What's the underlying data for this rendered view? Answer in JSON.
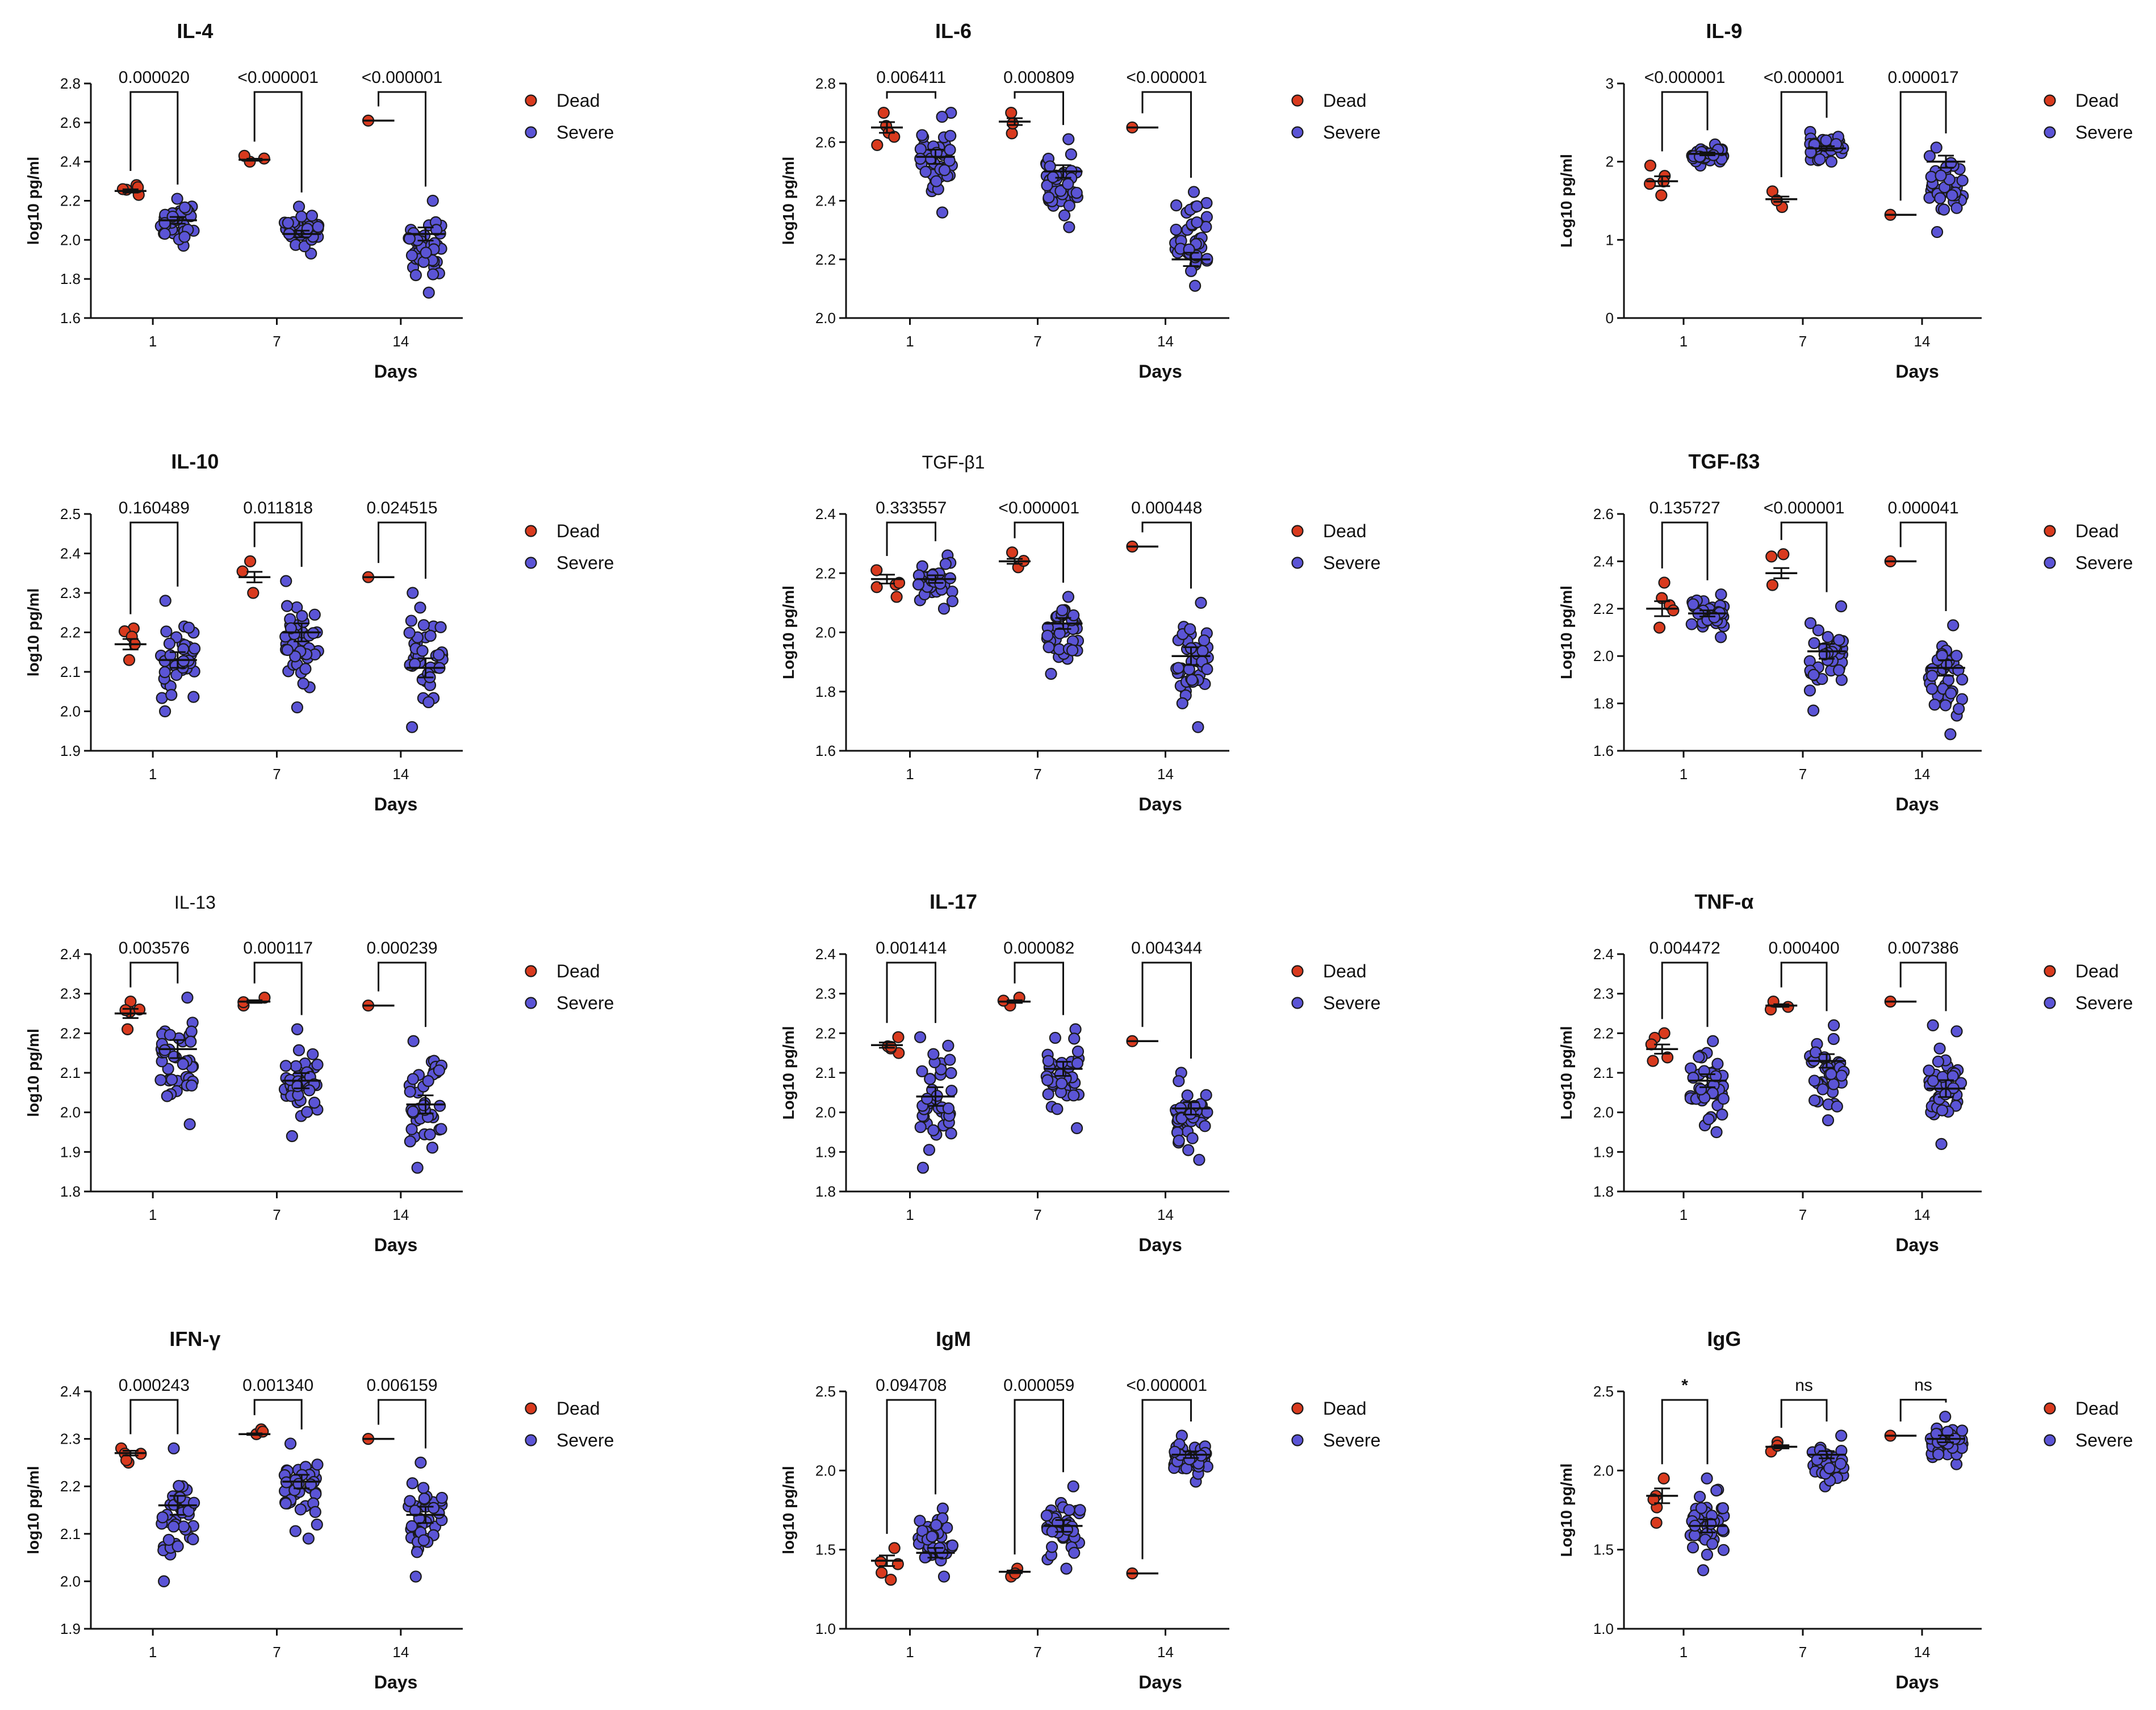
{
  "colors": {
    "dead": "#d93a1e",
    "severe": "#5b54d6",
    "outline": "#1a1a1a"
  },
  "legend": {
    "dead": "Dead",
    "severe": "Severe"
  },
  "chart_data": [
    {
      "type": "scatter",
      "title": "IL-4",
      "title_bold": true,
      "ylabel": "log10 pg/ml",
      "xlabel": "Days",
      "categories": [
        "1",
        "7",
        "14"
      ],
      "ylim": [
        1.6,
        2.8
      ],
      "yticks": [
        1.6,
        1.8,
        2.0,
        2.2,
        2.4,
        2.6,
        2.8
      ],
      "ytick_labels": [
        "1.6",
        "1.8",
        "2.0",
        "2.2",
        "2.4",
        "2.6",
        "2.8"
      ],
      "comparisons": [
        "0.000020",
        "<0.000001",
        "<0.000001"
      ],
      "series": [
        {
          "name": "Dead",
          "mean": [
            2.25,
            2.41,
            2.61
          ],
          "n": [
            5,
            3,
            1
          ],
          "range": [
            [
              2.23,
              2.28
            ],
            [
              2.4,
              2.43
            ],
            [
              2.61,
              2.61
            ]
          ]
        },
        {
          "name": "Severe",
          "mean": [
            2.1,
            2.03,
            2.03
          ],
          "n": [
            40,
            40,
            40
          ],
          "range": [
            [
              1.97,
              2.21
            ],
            [
              1.93,
              2.17
            ],
            [
              1.73,
              2.2
            ]
          ]
        }
      ]
    },
    {
      "type": "scatter",
      "title": "IL-6",
      "title_bold": true,
      "ylabel": "log10 pg/ml",
      "xlabel": "Days",
      "categories": [
        "1",
        "7",
        "14"
      ],
      "ylim": [
        2.0,
        2.8
      ],
      "yticks": [
        2.0,
        2.2,
        2.4,
        2.6,
        2.8
      ],
      "ytick_labels": [
        "2.0",
        "2.2",
        "2.4",
        "2.6",
        "2.8"
      ],
      "comparisons": [
        "0.006411",
        "0.000809",
        "<0.000001"
      ],
      "series": [
        {
          "name": "Dead",
          "mean": [
            2.65,
            2.67,
            2.65
          ],
          "n": [
            5,
            3,
            1
          ],
          "range": [
            [
              2.59,
              2.7
            ],
            [
              2.63,
              2.7
            ],
            [
              2.65,
              2.65
            ]
          ]
        },
        {
          "name": "Severe",
          "mean": [
            2.55,
            2.5,
            2.2
          ],
          "n": [
            40,
            40,
            40
          ],
          "range": [
            [
              2.36,
              2.7
            ],
            [
              2.31,
              2.61
            ],
            [
              2.11,
              2.43
            ]
          ]
        }
      ]
    },
    {
      "type": "scatter",
      "title": "IL-9",
      "title_bold": true,
      "ylabel": "Log10 pg/ml",
      "xlabel": "Days",
      "categories": [
        "1",
        "7",
        "14"
      ],
      "ylim": [
        0,
        3
      ],
      "yticks": [
        0,
        1,
        2,
        3
      ],
      "ytick_labels": [
        "0",
        "1",
        "2",
        "3"
      ],
      "comparisons": [
        "<0.000001",
        "<0.000001",
        "0.000017"
      ],
      "series": [
        {
          "name": "Dead",
          "mean": [
            1.75,
            1.52,
            1.32
          ],
          "n": [
            5,
            3,
            1
          ],
          "range": [
            [
              1.57,
              1.95
            ],
            [
              1.42,
              1.62
            ],
            [
              1.32,
              1.32
            ]
          ]
        },
        {
          "name": "Severe",
          "mean": [
            2.1,
            2.17,
            2.0
          ],
          "n": [
            40,
            40,
            40
          ],
          "range": [
            [
              1.95,
              2.22
            ],
            [
              2.0,
              2.38
            ],
            [
              1.1,
              2.18
            ]
          ]
        }
      ]
    },
    {
      "type": "scatter",
      "title": "IL-10",
      "title_bold": true,
      "ylabel": "log10 pg/ml",
      "xlabel": "Days",
      "categories": [
        "1",
        "7",
        "14"
      ],
      "ylim": [
        1.9,
        2.5
      ],
      "yticks": [
        1.9,
        2.0,
        2.1,
        2.2,
        2.3,
        2.4,
        2.5
      ],
      "ytick_labels": [
        "1.9",
        "2.0",
        "2.1",
        "2.2",
        "2.3",
        "2.4",
        "2.5"
      ],
      "comparisons": [
        "0.160489",
        "0.011818",
        "0.024515"
      ],
      "series": [
        {
          "name": "Dead",
          "mean": [
            2.17,
            2.34,
            2.34
          ],
          "n": [
            5,
            3,
            1
          ],
          "range": [
            [
              2.13,
              2.21
            ],
            [
              2.3,
              2.38
            ],
            [
              2.34,
              2.34
            ]
          ]
        },
        {
          "name": "Severe",
          "mean": [
            2.13,
            2.2,
            2.11
          ],
          "n": [
            40,
            40,
            40
          ],
          "range": [
            [
              2.0,
              2.28
            ],
            [
              2.01,
              2.33
            ],
            [
              1.96,
              2.3
            ]
          ]
        }
      ]
    },
    {
      "type": "scatter",
      "title": "TGF-β1",
      "title_bold": false,
      "ylabel": "Log10 pg/ml",
      "xlabel": "Days",
      "categories": [
        "1",
        "7",
        "14"
      ],
      "ylim": [
        1.6,
        2.4
      ],
      "yticks": [
        1.6,
        1.8,
        2.0,
        2.2,
        2.4
      ],
      "ytick_labels": [
        "1.6",
        "1.8",
        "2.0",
        "2.2",
        "2.4"
      ],
      "comparisons": [
        "0.333557",
        "<0.000001",
        "0.000448"
      ],
      "series": [
        {
          "name": "Dead",
          "mean": [
            2.18,
            2.24,
            2.29
          ],
          "n": [
            5,
            3,
            1
          ],
          "range": [
            [
              2.12,
              2.21
            ],
            [
              2.22,
              2.27
            ],
            [
              2.29,
              2.29
            ]
          ]
        },
        {
          "name": "Severe",
          "mean": [
            2.18,
            2.03,
            1.92
          ],
          "n": [
            40,
            40,
            40
          ],
          "range": [
            [
              2.08,
              2.26
            ],
            [
              1.86,
              2.12
            ],
            [
              1.68,
              2.1
            ]
          ]
        }
      ]
    },
    {
      "type": "scatter",
      "title": "TGF-ß3",
      "title_bold": true,
      "ylabel": "Log10 pg/ml",
      "xlabel": "Days",
      "categories": [
        "1",
        "7",
        "14"
      ],
      "ylim": [
        1.6,
        2.6
      ],
      "yticks": [
        1.6,
        1.8,
        2.0,
        2.2,
        2.4,
        2.6
      ],
      "ytick_labels": [
        "1.6",
        "1.8",
        "2.0",
        "2.2",
        "2.4",
        "2.6"
      ],
      "comparisons": [
        "0.135727",
        "<0.000001",
        "0.000041"
      ],
      "series": [
        {
          "name": "Dead",
          "mean": [
            2.2,
            2.35,
            2.4
          ],
          "n": [
            5,
            3,
            1
          ],
          "range": [
            [
              2.12,
              2.31
            ],
            [
              2.3,
              2.43
            ],
            [
              2.4,
              2.4
            ]
          ]
        },
        {
          "name": "Severe",
          "mean": [
            2.18,
            2.02,
            1.95
          ],
          "n": [
            40,
            40,
            40
          ],
          "range": [
            [
              2.08,
              2.26
            ],
            [
              1.77,
              2.21
            ],
            [
              1.67,
              2.13
            ]
          ]
        }
      ]
    },
    {
      "type": "scatter",
      "title": "IL-13",
      "title_bold": false,
      "ylabel": "log10 pg/ml",
      "xlabel": "Days",
      "categories": [
        "1",
        "7",
        "14"
      ],
      "ylim": [
        1.8,
        2.4
      ],
      "yticks": [
        1.8,
        1.9,
        2.0,
        2.1,
        2.2,
        2.3,
        2.4
      ],
      "ytick_labels": [
        "1.8",
        "1.9",
        "2.0",
        "2.1",
        "2.2",
        "2.3",
        "2.4"
      ],
      "comparisons": [
        "0.003576",
        "0.000117",
        "0.000239"
      ],
      "series": [
        {
          "name": "Dead",
          "mean": [
            2.25,
            2.28,
            2.27
          ],
          "n": [
            5,
            3,
            1
          ],
          "range": [
            [
              2.21,
              2.28
            ],
            [
              2.27,
              2.29
            ],
            [
              2.27,
              2.27
            ]
          ]
        },
        {
          "name": "Severe",
          "mean": [
            2.16,
            2.08,
            2.02
          ],
          "n": [
            40,
            40,
            40
          ],
          "range": [
            [
              1.97,
              2.29
            ],
            [
              1.94,
              2.21
            ],
            [
              1.86,
              2.18
            ]
          ]
        }
      ]
    },
    {
      "type": "scatter",
      "title": "IL-17",
      "title_bold": true,
      "ylabel": "Log10 pg/ml",
      "xlabel": "Days",
      "categories": [
        "1",
        "7",
        "14"
      ],
      "ylim": [
        1.8,
        2.4
      ],
      "yticks": [
        1.8,
        1.9,
        2.0,
        2.1,
        2.2,
        2.3,
        2.4
      ],
      "ytick_labels": [
        "1.8",
        "1.9",
        "2.0",
        "2.1",
        "2.2",
        "2.3",
        "2.4"
      ],
      "comparisons": [
        "0.001414",
        "0.000082",
        "0.004344"
      ],
      "series": [
        {
          "name": "Dead",
          "mean": [
            2.17,
            2.28,
            2.18
          ],
          "n": [
            5,
            3,
            1
          ],
          "range": [
            [
              2.15,
              2.19
            ],
            [
              2.27,
              2.29
            ],
            [
              2.18,
              2.18
            ]
          ]
        },
        {
          "name": "Severe",
          "mean": [
            2.04,
            2.11,
            2.01
          ],
          "n": [
            40,
            40,
            40
          ],
          "range": [
            [
              1.86,
              2.19
            ],
            [
              1.96,
              2.21
            ],
            [
              1.88,
              2.1
            ]
          ]
        }
      ]
    },
    {
      "type": "scatter",
      "title": "TNF-α",
      "title_bold": true,
      "ylabel": "Log10 pg/ml",
      "xlabel": "Days",
      "categories": [
        "1",
        "7",
        "14"
      ],
      "ylim": [
        1.8,
        2.4
      ],
      "yticks": [
        1.8,
        1.9,
        2.0,
        2.1,
        2.2,
        2.3,
        2.4
      ],
      "ytick_labels": [
        "1.8",
        "1.9",
        "2.0",
        "2.1",
        "2.2",
        "2.3",
        "2.4"
      ],
      "comparisons": [
        "0.004472",
        "0.000400",
        "0.007386"
      ],
      "series": [
        {
          "name": "Dead",
          "mean": [
            2.16,
            2.27,
            2.28
          ],
          "n": [
            5,
            3,
            1
          ],
          "range": [
            [
              2.13,
              2.2
            ],
            [
              2.26,
              2.28
            ],
            [
              2.28,
              2.28
            ]
          ]
        },
        {
          "name": "Severe",
          "mean": [
            2.08,
            2.13,
            2.06
          ],
          "n": [
            40,
            40,
            40
          ],
          "range": [
            [
              1.95,
              2.18
            ],
            [
              1.98,
              2.22
            ],
            [
              1.92,
              2.22
            ]
          ]
        }
      ]
    },
    {
      "type": "scatter",
      "title": "IFN-γ",
      "title_bold": true,
      "ylabel": "log10 pg/ml",
      "xlabel": "Days",
      "categories": [
        "1",
        "7",
        "14"
      ],
      "ylim": [
        1.9,
        2.4
      ],
      "yticks": [
        1.9,
        2.0,
        2.1,
        2.2,
        2.3,
        2.4
      ],
      "ytick_labels": [
        "1.9",
        "2.0",
        "2.1",
        "2.2",
        "2.3",
        "2.4"
      ],
      "comparisons": [
        "0.000243",
        "0.001340",
        "0.006159"
      ],
      "series": [
        {
          "name": "Dead",
          "mean": [
            2.27,
            2.31,
            2.3
          ],
          "n": [
            5,
            3,
            1
          ],
          "range": [
            [
              2.25,
              2.28
            ],
            [
              2.31,
              2.32
            ],
            [
              2.3,
              2.3
            ]
          ]
        },
        {
          "name": "Severe",
          "mean": [
            2.16,
            2.21,
            2.14
          ],
          "n": [
            40,
            40,
            40
          ],
          "range": [
            [
              2.0,
              2.28
            ],
            [
              2.09,
              2.29
            ],
            [
              2.01,
              2.25
            ]
          ]
        }
      ]
    },
    {
      "type": "scatter",
      "title": "IgM",
      "title_bold": true,
      "ylabel": "log10 pg/ml",
      "xlabel": "Days",
      "categories": [
        "1",
        "7",
        "14"
      ],
      "ylim": [
        1.0,
        2.5
      ],
      "yticks": [
        1.0,
        1.5,
        2.0,
        2.5
      ],
      "ytick_labels": [
        "1.0",
        "1.5",
        "2.0",
        "2.5"
      ],
      "comparisons": [
        "0.094708",
        "0.000059",
        "<0.000001"
      ],
      "series": [
        {
          "name": "Dead",
          "mean": [
            1.43,
            1.36,
            1.35
          ],
          "n": [
            5,
            3,
            1
          ],
          "range": [
            [
              1.31,
              1.51
            ],
            [
              1.33,
              1.38
            ],
            [
              1.35,
              1.35
            ]
          ]
        },
        {
          "name": "Severe",
          "mean": [
            1.48,
            1.65,
            2.1
          ],
          "n": [
            40,
            40,
            40
          ],
          "range": [
            [
              1.33,
              1.76
            ],
            [
              1.38,
              1.9
            ],
            [
              1.93,
              2.22
            ]
          ]
        }
      ]
    },
    {
      "type": "scatter",
      "title": "IgG",
      "title_bold": true,
      "ylabel": "Log10 pg/ml",
      "xlabel": "Days",
      "categories": [
        "1",
        "7",
        "14"
      ],
      "ylim": [
        1.0,
        2.5
      ],
      "yticks": [
        1.0,
        1.5,
        2.0,
        2.5
      ],
      "ytick_labels": [
        "1.0",
        "1.5",
        "2.0",
        "2.5"
      ],
      "comparisons": [
        "*",
        "ns",
        "ns"
      ],
      "series": [
        {
          "name": "Dead",
          "mean": [
            1.84,
            2.15,
            2.22
          ],
          "n": [
            5,
            3,
            1
          ],
          "range": [
            [
              1.67,
              1.95
            ],
            [
              2.12,
              2.18
            ],
            [
              2.22,
              2.22
            ]
          ]
        },
        {
          "name": "Severe",
          "mean": [
            1.65,
            2.1,
            2.2
          ],
          "n": [
            40,
            40,
            40
          ],
          "range": [
            [
              1.37,
              1.95
            ],
            [
              1.9,
              2.22
            ],
            [
              2.04,
              2.34
            ]
          ]
        }
      ]
    }
  ]
}
